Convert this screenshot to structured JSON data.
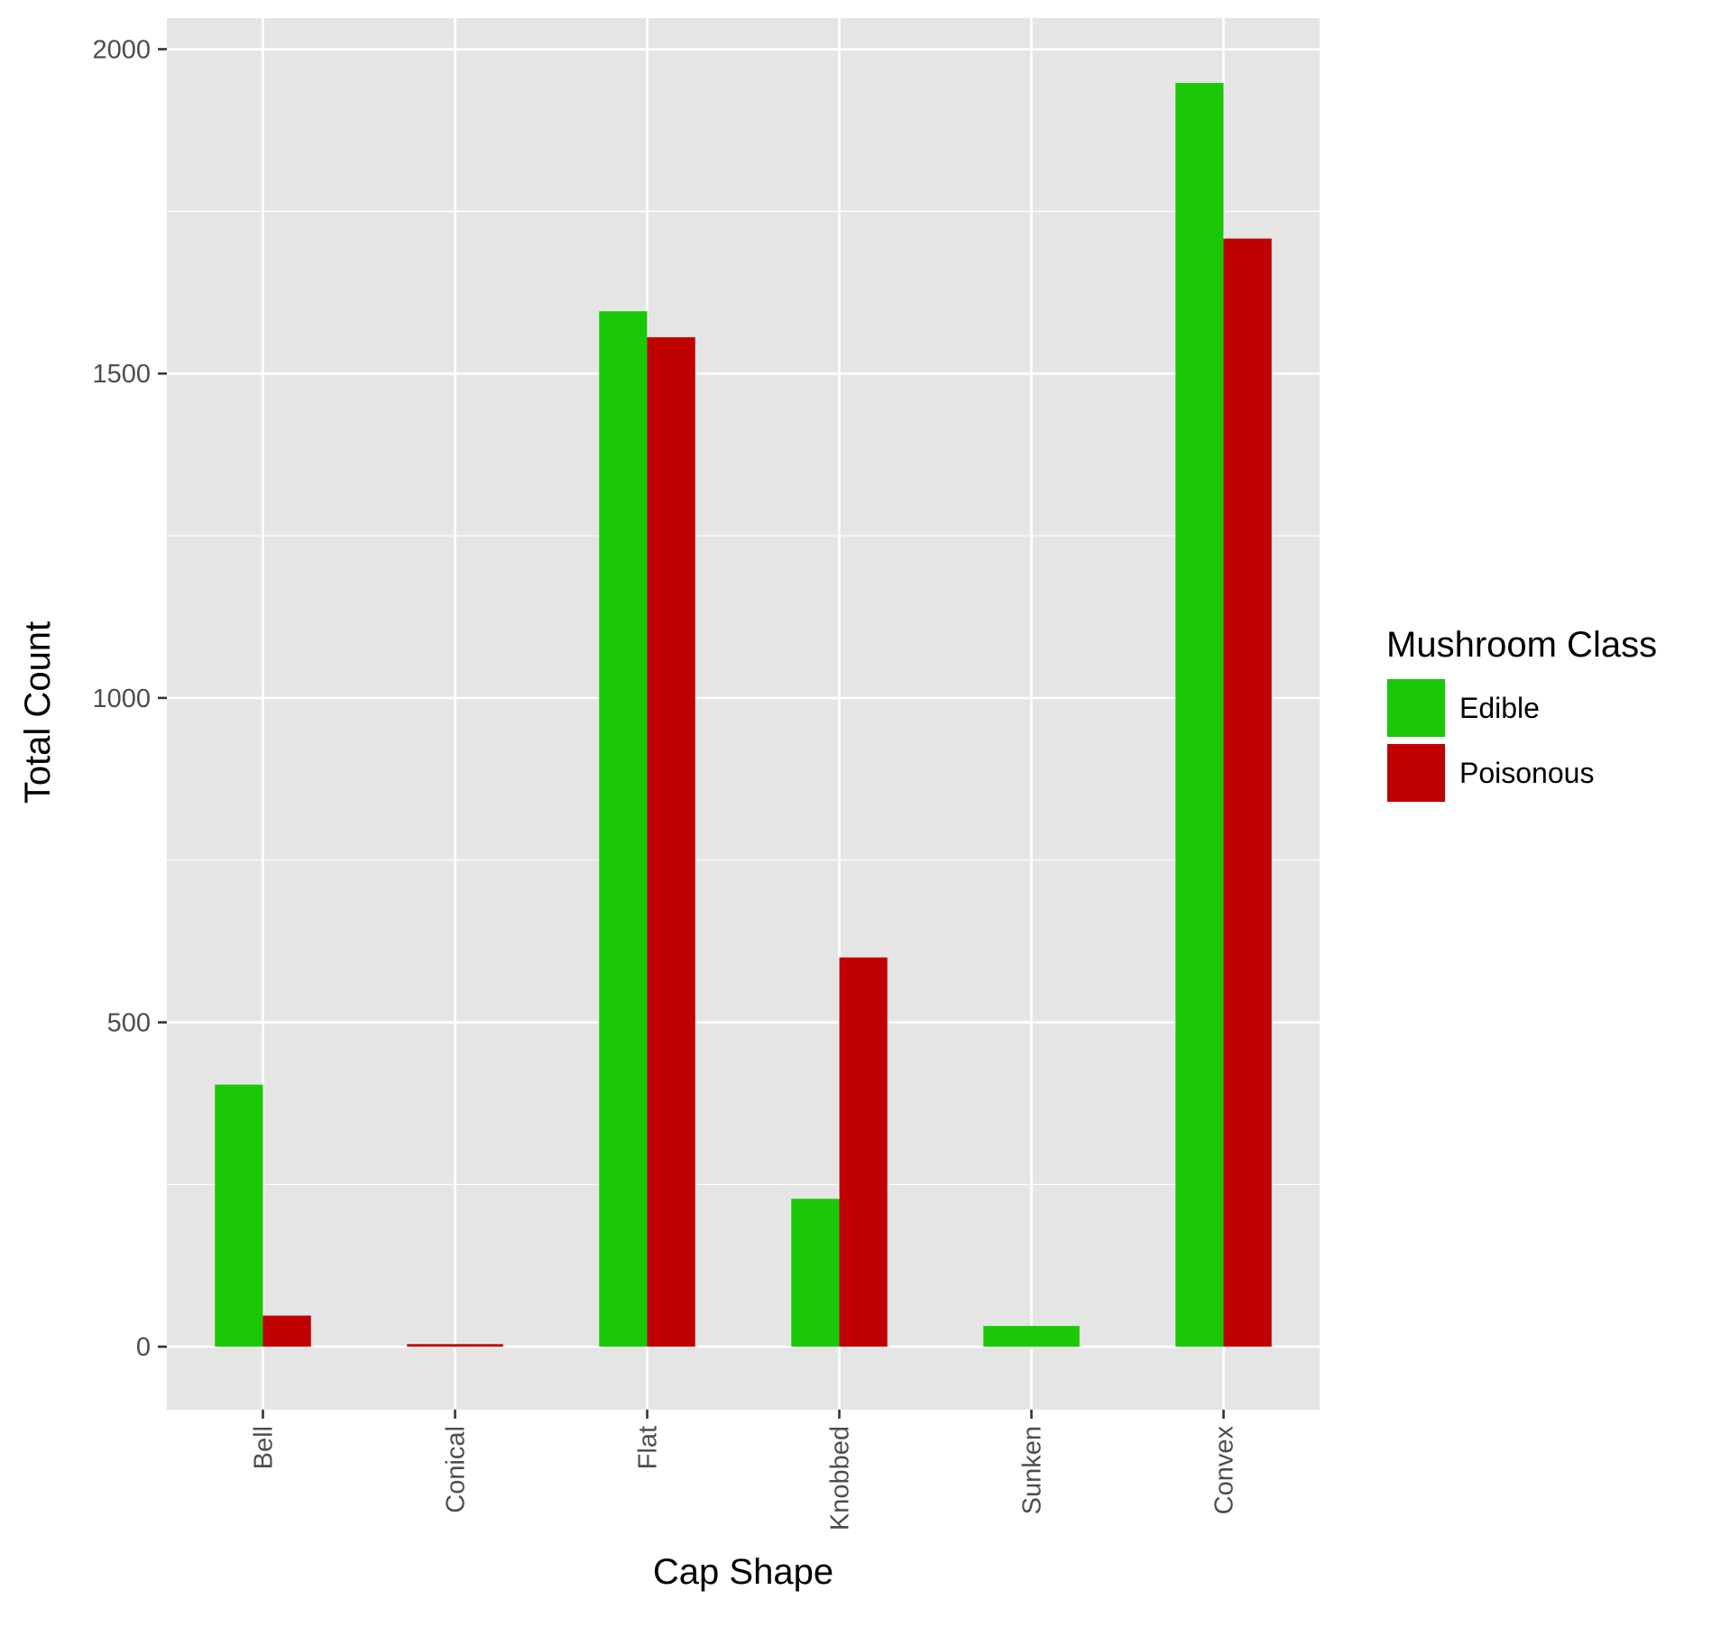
{
  "chart_data": {
    "type": "bar",
    "categories": [
      "Bell",
      "Conical",
      "Flat",
      "Knobbed",
      "Sunken",
      "Convex"
    ],
    "series": [
      {
        "name": "Edible",
        "values": [
          404,
          0,
          1596,
          228,
          32,
          1948
        ],
        "color": "#1AC805"
      },
      {
        "name": "Poisonous",
        "values": [
          48,
          4,
          1556,
          600,
          0,
          1708
        ],
        "color": "#C00000"
      }
    ],
    "xlabel": "Cap Shape",
    "ylabel": "Total Count",
    "ylim": [
      -97,
      2048
    ],
    "yticks": [
      0,
      500,
      1000,
      1500,
      2000
    ],
    "ytick_labels": [
      "0",
      "500",
      "1000",
      "1500",
      "2000"
    ],
    "legend": {
      "title": "Mushroom Class",
      "position": "right"
    },
    "grid": true,
    "panel_background": "#E5E5E5",
    "grid_color": "#FFFFFF"
  }
}
